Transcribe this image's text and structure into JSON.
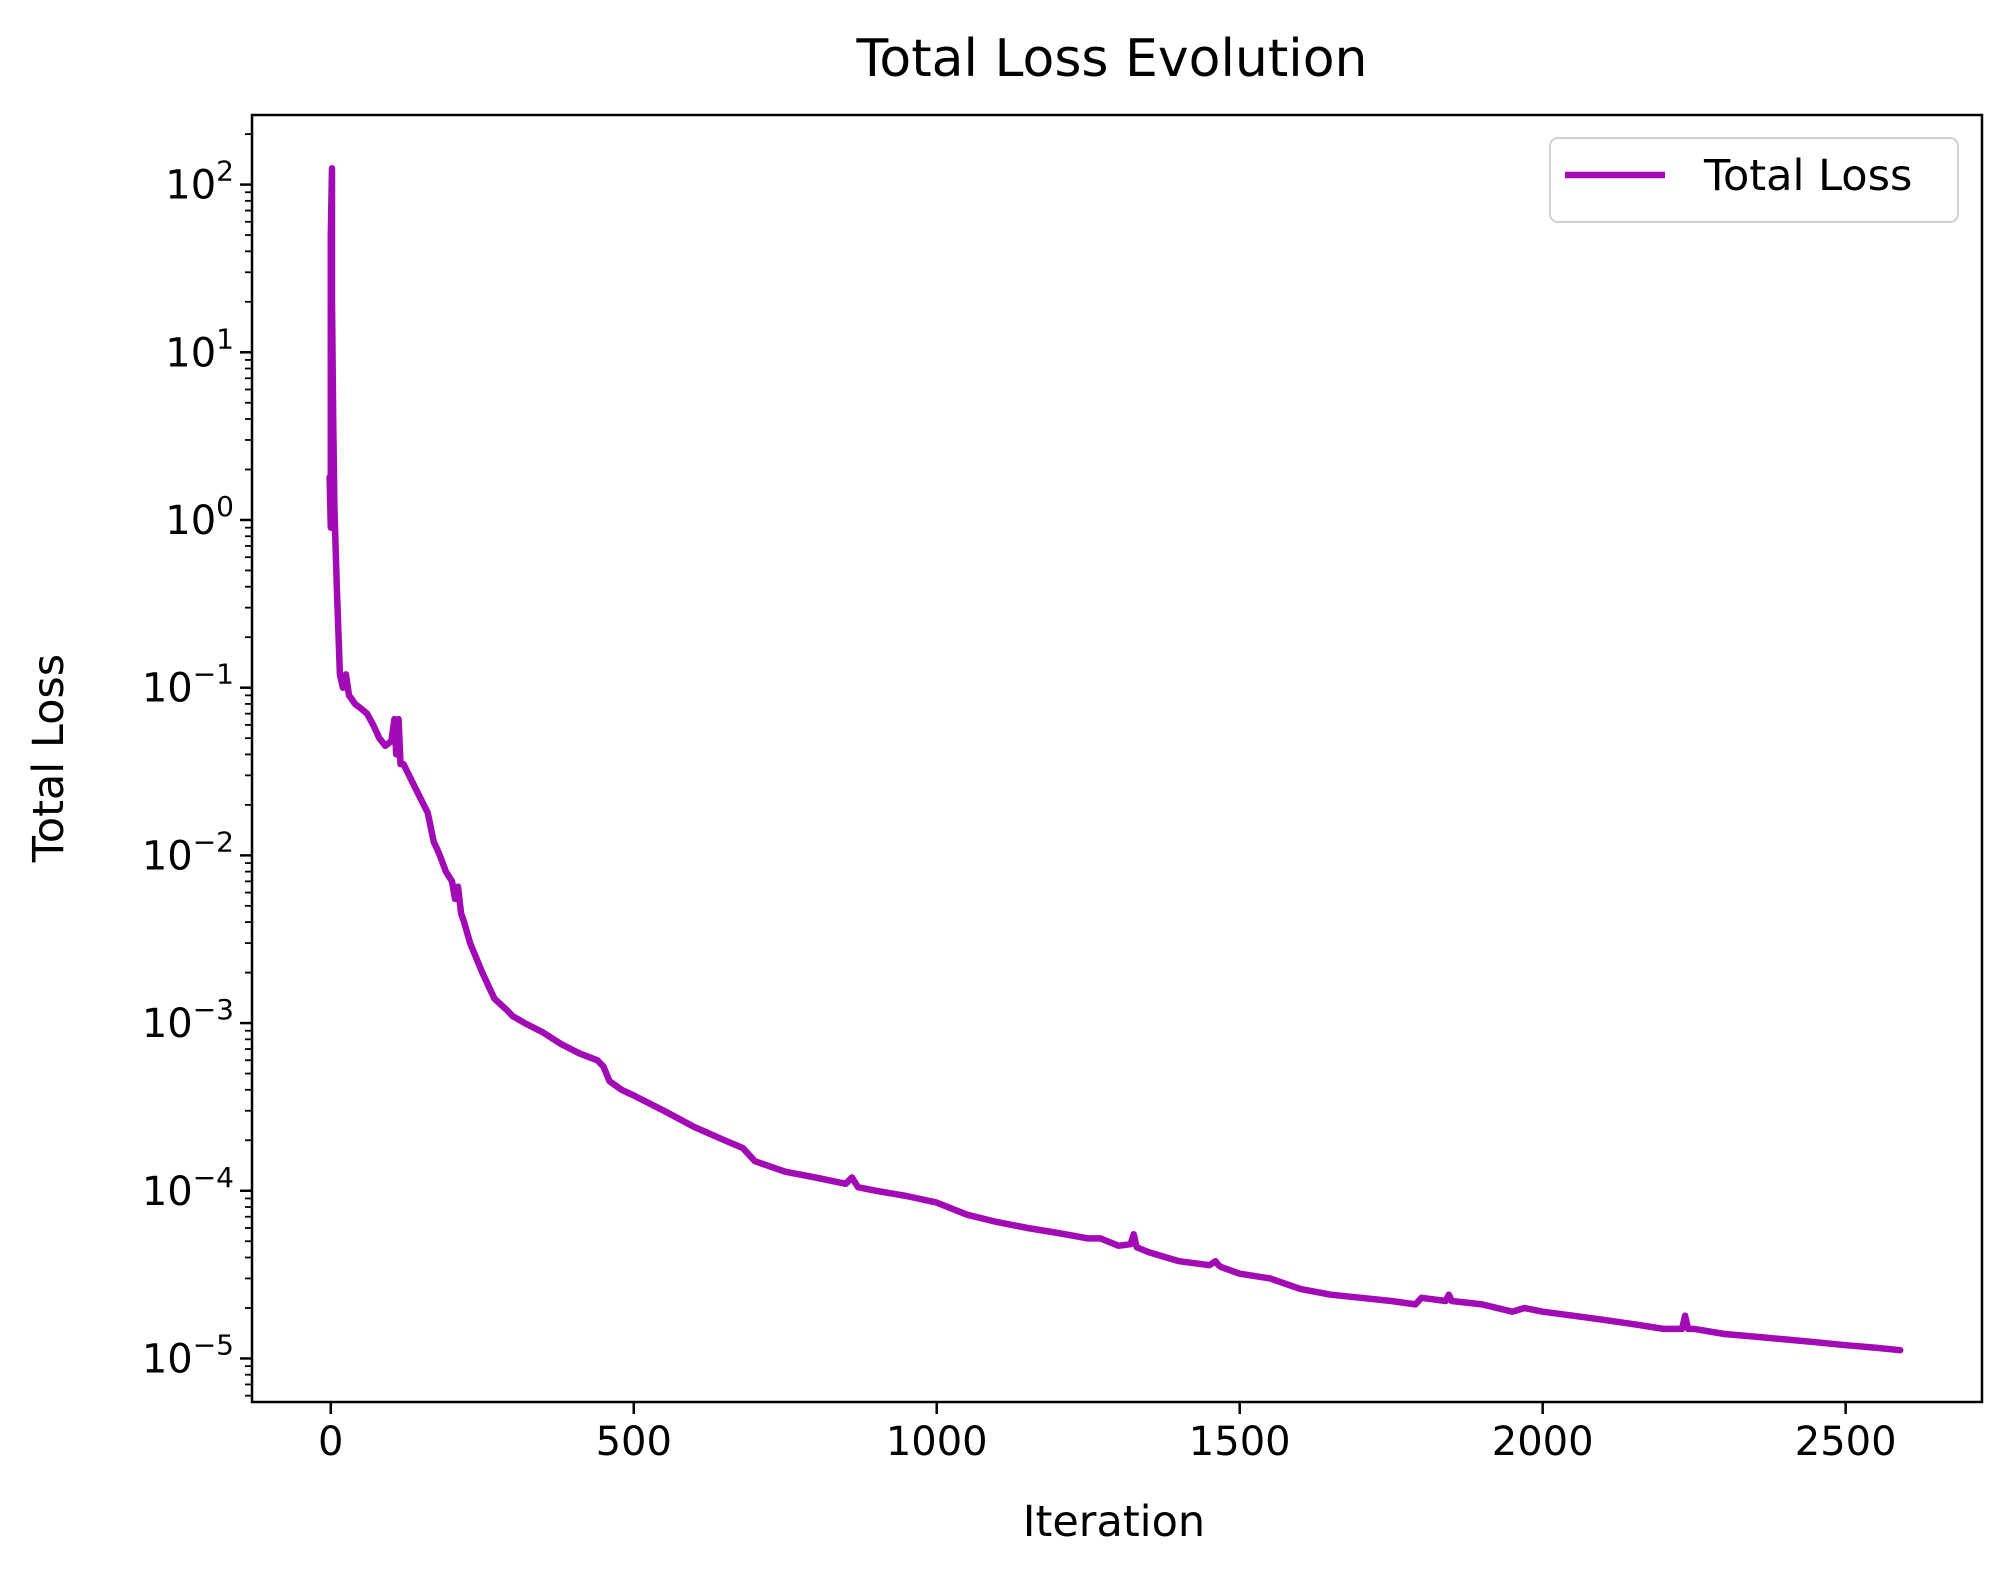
{
  "chart_data": {
    "type": "line",
    "title": "Total Loss Evolution",
    "xlabel": "Iteration",
    "ylabel": "Total Loss",
    "yscale": "log",
    "xlim": [
      -130,
      2725
    ],
    "ylim": [
      5.5e-06,
      260
    ],
    "x_ticks": [
      {
        "value": 0,
        "label": "0"
      },
      {
        "value": 500,
        "label": "500"
      },
      {
        "value": 1000,
        "label": "1000"
      },
      {
        "value": 1500,
        "label": "1500"
      },
      {
        "value": 2000,
        "label": "2000"
      },
      {
        "value": 2500,
        "label": "2500"
      }
    ],
    "y_ticks": [
      {
        "value": 100,
        "base": "10",
        "exp": "2"
      },
      {
        "value": 10,
        "base": "10",
        "exp": "1"
      },
      {
        "value": 1,
        "base": "10",
        "exp": "0"
      },
      {
        "value": 0.1,
        "base": "10",
        "exp": "−1"
      },
      {
        "value": 0.01,
        "base": "10",
        "exp": "−2"
      },
      {
        "value": 0.001,
        "base": "10",
        "exp": "−3"
      },
      {
        "value": 0.0001,
        "base": "10",
        "exp": "−4"
      },
      {
        "value": 1e-05,
        "base": "10",
        "exp": "−5"
      }
    ],
    "grid": false,
    "legend_position": "top-right",
    "series": [
      {
        "name": "Total Loss",
        "color": "#a10ab5",
        "x": [
          -2,
          0,
          0,
          2,
          2,
          4,
          6,
          10,
          15,
          20,
          25,
          30,
          35,
          40,
          50,
          60,
          70,
          80,
          90,
          100,
          105,
          108,
          112,
          115,
          120,
          140,
          160,
          170,
          175,
          180,
          190,
          200,
          205,
          210,
          215,
          220,
          230,
          250,
          270,
          290,
          300,
          320,
          350,
          380,
          410,
          440,
          450,
          460,
          480,
          500,
          550,
          600,
          650,
          680,
          700,
          750,
          800,
          850,
          860,
          870,
          900,
          950,
          1000,
          1050,
          1100,
          1150,
          1200,
          1250,
          1270,
          1300,
          1320,
          1325,
          1330,
          1350,
          1400,
          1450,
          1460,
          1465,
          1470,
          1500,
          1550,
          1600,
          1650,
          1700,
          1750,
          1790,
          1800,
          1840,
          1845,
          1850,
          1900,
          1950,
          1970,
          2000,
          2050,
          2100,
          2150,
          2200,
          2230,
          2235,
          2240,
          2250,
          2300,
          2350,
          2400,
          2450,
          2500,
          2550,
          2590
        ],
        "y": [
          1.8,
          0.9,
          50,
          125,
          20,
          4,
          1.2,
          0.4,
          0.12,
          0.1,
          0.12,
          0.09,
          0.085,
          0.08,
          0.075,
          0.07,
          0.06,
          0.05,
          0.045,
          0.048,
          0.065,
          0.04,
          0.065,
          0.035,
          0.035,
          0.025,
          0.018,
          0.012,
          0.011,
          0.01,
          0.008,
          0.007,
          0.0055,
          0.0065,
          0.0045,
          0.004,
          0.003,
          0.002,
          0.0014,
          0.0012,
          0.0011,
          0.001,
          0.00088,
          0.00075,
          0.00066,
          0.0006,
          0.00055,
          0.00045,
          0.0004,
          0.00037,
          0.0003,
          0.00024,
          0.0002,
          0.00018,
          0.00015,
          0.00013,
          0.00012,
          0.00011,
          0.00012,
          0.000105,
          0.0001,
          9.3e-05,
          8.5e-05,
          7.2e-05,
          6.5e-05,
          6e-05,
          5.6e-05,
          5.2e-05,
          5.2e-05,
          4.7e-05,
          4.8e-05,
          5.5e-05,
          4.6e-05,
          4.3e-05,
          3.8e-05,
          3.6e-05,
          3.8e-05,
          3.6e-05,
          3.5e-05,
          3.2e-05,
          3e-05,
          2.6e-05,
          2.4e-05,
          2.3e-05,
          2.2e-05,
          2.1e-05,
          2.3e-05,
          2.2e-05,
          2.4e-05,
          2.2e-05,
          2.1e-05,
          1.9e-05,
          2e-05,
          1.9e-05,
          1.8e-05,
          1.7e-05,
          1.6e-05,
          1.5e-05,
          1.5e-05,
          1.8e-05,
          1.5e-05,
          1.5e-05,
          1.4e-05,
          1.35e-05,
          1.3e-05,
          1.25e-05,
          1.2e-05,
          1.16e-05,
          1.12e-05
        ]
      }
    ]
  }
}
